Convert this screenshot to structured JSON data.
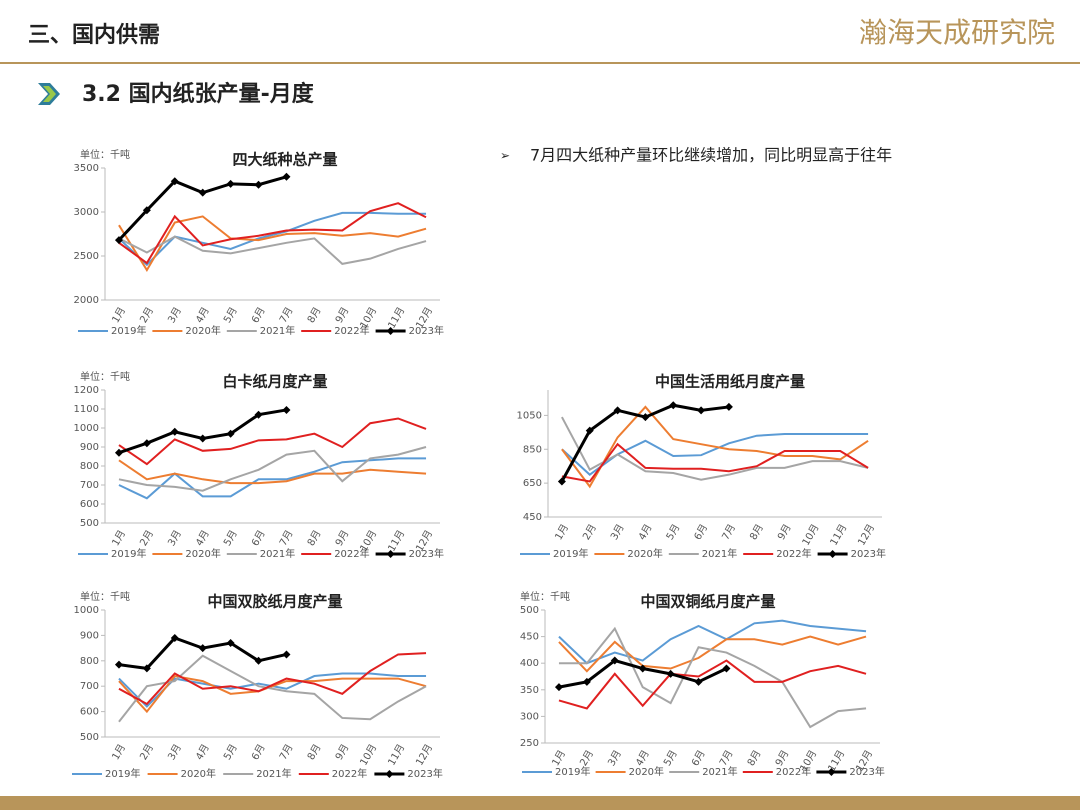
{
  "header": {
    "section": "三、国内供需",
    "logo": "瀚海天成研究院",
    "subtitle": "3.2 国内纸张产量-月度",
    "bullet": "7月四大纸种产量环比继续增加，同比明显高于往年"
  },
  "chart_data": [
    {
      "type": "line",
      "title": "四大纸种总产量",
      "unit": "单位：千吨",
      "categories": [
        "1月",
        "2月",
        "3月",
        "4月",
        "5月",
        "6月",
        "7月",
        "8月",
        "9月",
        "10月",
        "11月",
        "12月"
      ],
      "ylim": [
        2000,
        3500
      ],
      "yticks": [
        2000,
        2500,
        3000,
        3500
      ],
      "series": [
        {
          "name": "2019年",
          "color": "#5b9bd5",
          "values": [
            2700,
            2400,
            2720,
            2650,
            2580,
            2700,
            2780,
            2900,
            2990,
            2990,
            2980,
            2980
          ]
        },
        {
          "name": "2020年",
          "color": "#ed7d31",
          "values": [
            2850,
            2340,
            2880,
            2950,
            2700,
            2680,
            2750,
            2760,
            2730,
            2760,
            2720,
            2810
          ]
        },
        {
          "name": "2021年",
          "color": "#a5a5a5",
          "values": [
            2700,
            2540,
            2720,
            2560,
            2530,
            2590,
            2650,
            2700,
            2410,
            2470,
            2580,
            2670
          ]
        },
        {
          "name": "2022年",
          "color": "#e02020",
          "values": [
            2650,
            2420,
            2950,
            2620,
            2690,
            2730,
            2790,
            2800,
            2790,
            3010,
            3100,
            2940
          ]
        },
        {
          "name": "2023年",
          "color": "#000000",
          "marker": "diamond",
          "values": [
            2680,
            3020,
            3350,
            3220,
            3320,
            3310,
            3400,
            null,
            null,
            null,
            null,
            null
          ]
        }
      ]
    },
    {
      "type": "line",
      "title": "白卡纸月度产量",
      "unit": "单位：千吨",
      "categories": [
        "1月",
        "2月",
        "3月",
        "4月",
        "5月",
        "6月",
        "7月",
        "8月",
        "9月",
        "10月",
        "11月",
        "12月"
      ],
      "ylim": [
        500,
        1200
      ],
      "yticks": [
        500,
        600,
        700,
        800,
        900,
        1000,
        1100,
        1200
      ],
      "series": [
        {
          "name": "2019年",
          "color": "#5b9bd5",
          "values": [
            700,
            630,
            760,
            640,
            640,
            730,
            730,
            770,
            820,
            830,
            840,
            840
          ]
        },
        {
          "name": "2020年",
          "color": "#ed7d31",
          "values": [
            830,
            730,
            760,
            730,
            710,
            710,
            720,
            760,
            760,
            780,
            770,
            760
          ]
        },
        {
          "name": "2021年",
          "color": "#a5a5a5",
          "values": [
            730,
            700,
            690,
            670,
            730,
            780,
            860,
            880,
            720,
            840,
            860,
            900
          ]
        },
        {
          "name": "2022年",
          "color": "#e02020",
          "values": [
            910,
            810,
            940,
            880,
            890,
            935,
            940,
            970,
            900,
            1025,
            1050,
            995
          ]
        },
        {
          "name": "2023年",
          "color": "#000000",
          "marker": "diamond",
          "values": [
            870,
            920,
            980,
            945,
            970,
            1070,
            1095,
            null,
            null,
            null,
            null,
            null
          ]
        }
      ]
    },
    {
      "type": "line",
      "title": "中国生活用纸月度产量",
      "categories": [
        "1月",
        "2月",
        "3月",
        "4月",
        "5月",
        "6月",
        "7月",
        "8月",
        "9月",
        "10月",
        "11月",
        "12月"
      ],
      "ylim": [
        450,
        1200
      ],
      "yticks": [
        450,
        650,
        850,
        1050
      ],
      "series": [
        {
          "name": "2019年",
          "color": "#5b9bd5",
          "values": [
            850,
            700,
            820,
            900,
            810,
            815,
            885,
            930,
            940,
            940,
            940,
            940
          ]
        },
        {
          "name": "2020年",
          "color": "#ed7d31",
          "values": [
            850,
            630,
            920,
            1100,
            910,
            880,
            850,
            840,
            810,
            810,
            790,
            900
          ]
        },
        {
          "name": "2021年",
          "color": "#a5a5a5",
          "values": [
            1040,
            730,
            820,
            720,
            710,
            670,
            700,
            740,
            740,
            780,
            780,
            740
          ]
        },
        {
          "name": "2022年",
          "color": "#e02020",
          "values": [
            690,
            660,
            880,
            740,
            735,
            735,
            720,
            750,
            840,
            840,
            840,
            740
          ]
        },
        {
          "name": "2023年",
          "color": "#000000",
          "marker": "diamond",
          "values": [
            660,
            960,
            1080,
            1040,
            1110,
            1080,
            1100,
            null,
            null,
            null,
            null,
            null
          ]
        }
      ]
    },
    {
      "type": "line",
      "title": "中国双胶纸月度产量",
      "unit": "单位：千吨",
      "categories": [
        "1月",
        "2月",
        "3月",
        "4月",
        "5月",
        "6月",
        "7月",
        "8月",
        "9月",
        "10月",
        "11月",
        "12月"
      ],
      "ylim": [
        500,
        1000
      ],
      "yticks": [
        500,
        600,
        700,
        800,
        900,
        1000
      ],
      "series": [
        {
          "name": "2019年",
          "color": "#5b9bd5",
          "values": [
            730,
            620,
            730,
            710,
            690,
            710,
            690,
            740,
            750,
            750,
            740,
            740
          ]
        },
        {
          "name": "2020年",
          "color": "#ed7d31",
          "values": [
            720,
            600,
            740,
            720,
            670,
            680,
            720,
            720,
            730,
            730,
            730,
            700
          ]
        },
        {
          "name": "2021年",
          "color": "#a5a5a5",
          "values": [
            560,
            700,
            720,
            820,
            760,
            700,
            680,
            670,
            575,
            570,
            640,
            700
          ]
        },
        {
          "name": "2022年",
          "color": "#e02020",
          "values": [
            690,
            630,
            750,
            690,
            700,
            680,
            730,
            710,
            670,
            760,
            825,
            830
          ]
        },
        {
          "name": "2023年",
          "color": "#000000",
          "marker": "diamond",
          "values": [
            785,
            770,
            890,
            850,
            870,
            800,
            825,
            null,
            null,
            null,
            null,
            null
          ]
        }
      ]
    },
    {
      "type": "line",
      "title": "中国双铜纸月度产量",
      "unit": "单位：千吨",
      "categories": [
        "1月",
        "2月",
        "3月",
        "4月",
        "5月",
        "6月",
        "7月",
        "8月",
        "9月",
        "10月",
        "11月",
        "12月"
      ],
      "ylim": [
        250,
        500
      ],
      "yticks": [
        250,
        300,
        350,
        400,
        450,
        500
      ],
      "series": [
        {
          "name": "2019年",
          "color": "#5b9bd5",
          "values": [
            450,
            400,
            420,
            405,
            445,
            470,
            445,
            475,
            480,
            470,
            465,
            460
          ]
        },
        {
          "name": "2020年",
          "color": "#ed7d31",
          "values": [
            440,
            385,
            440,
            395,
            390,
            410,
            445,
            445,
            435,
            450,
            435,
            450
          ]
        },
        {
          "name": "2021年",
          "color": "#a5a5a5",
          "values": [
            400,
            400,
            465,
            355,
            325,
            430,
            420,
            395,
            365,
            280,
            310,
            315
          ]
        },
        {
          "name": "2022年",
          "color": "#e02020",
          "values": [
            330,
            315,
            380,
            320,
            380,
            375,
            405,
            365,
            365,
            385,
            395,
            380
          ]
        },
        {
          "name": "2023年",
          "color": "#000000",
          "marker": "diamond",
          "values": [
            355,
            365,
            405,
            390,
            380,
            365,
            390,
            null,
            null,
            null,
            null,
            null
          ]
        }
      ]
    }
  ]
}
